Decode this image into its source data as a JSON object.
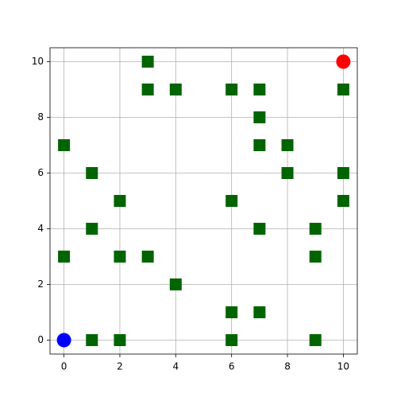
{
  "chart_data": {
    "type": "scatter",
    "series": [
      {
        "color": "#006400",
        "marker": "square",
        "x": [
          3,
          3,
          4,
          6,
          7,
          10,
          7,
          0,
          7,
          8,
          1,
          8,
          10,
          2,
          6,
          10,
          1,
          7,
          9,
          0,
          2,
          3,
          9,
          4,
          6,
          7,
          1,
          2,
          6,
          9
        ],
        "y": [
          10,
          9,
          9,
          9,
          9,
          9,
          8,
          7,
          7,
          7,
          6,
          6,
          6,
          5,
          5,
          5,
          4,
          4,
          4,
          3,
          3,
          3,
          3,
          2,
          1,
          1,
          0,
          0,
          0,
          0
        ]
      },
      {
        "color": "#0000ff",
        "marker": "circle",
        "x": [
          0
        ],
        "y": [
          0
        ]
      },
      {
        "color": "#ff0000",
        "marker": "circle",
        "x": [
          10
        ],
        "y": [
          10
        ]
      }
    ],
    "xlim": [
      -0.5,
      10.5
    ],
    "ylim": [
      -0.5,
      10.5
    ],
    "xticks": [
      0,
      2,
      4,
      6,
      8,
      10
    ],
    "yticks": [
      0,
      2,
      4,
      6,
      8,
      10
    ],
    "grid": true
  }
}
